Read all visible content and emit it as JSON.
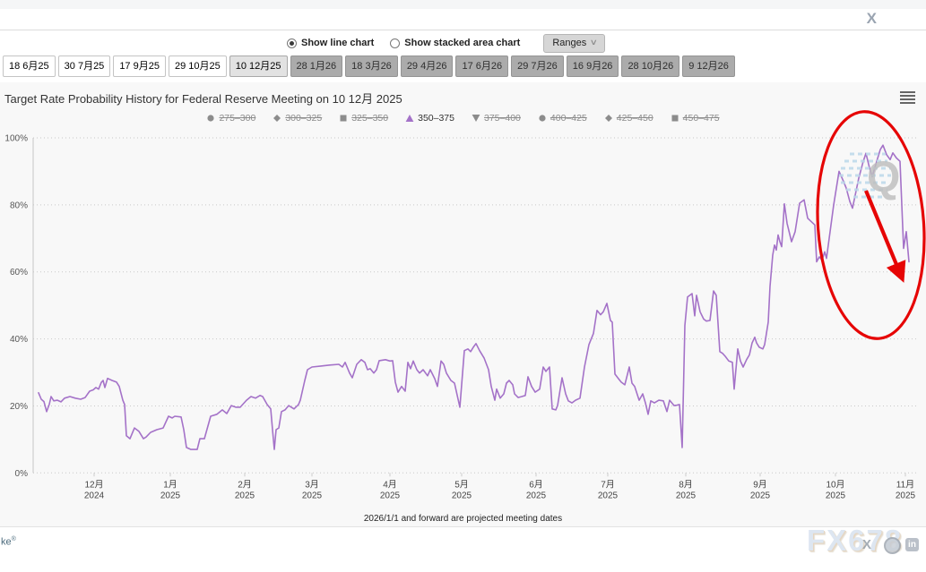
{
  "page": {
    "close_label": "X"
  },
  "controls": {
    "radio_line": {
      "label": "Show line chart",
      "selected": true
    },
    "radio_area": {
      "label": "Show stacked area chart",
      "selected": false
    },
    "ranges_label": "Ranges",
    "ranges_chevron": "∨"
  },
  "tabs": [
    {
      "label": "18 6月25",
      "state": "past"
    },
    {
      "label": "30 7月25",
      "state": "past"
    },
    {
      "label": "17 9月25",
      "state": "past"
    },
    {
      "label": "29 10月25",
      "state": "past"
    },
    {
      "label": "10 12月25",
      "state": "active"
    },
    {
      "label": "28 1月26",
      "state": "future"
    },
    {
      "label": "18 3月26",
      "state": "future"
    },
    {
      "label": "29 4月26",
      "state": "future"
    },
    {
      "label": "17 6月26",
      "state": "future"
    },
    {
      "label": "29 7月26",
      "state": "future"
    },
    {
      "label": "16 9月26",
      "state": "future"
    },
    {
      "label": "28 10月26",
      "state": "future"
    },
    {
      "label": "9 12月26",
      "state": "future"
    }
  ],
  "chart": {
    "title": "Target Rate Probability History for Federal Reserve Meeting on 10 12月 2025",
    "footnote": "2026/1/1 and forward are projected meeting dates"
  },
  "legend": [
    {
      "label": "275–300",
      "marker": "circle",
      "active": false
    },
    {
      "label": "300–325",
      "marker": "diamond",
      "active": false
    },
    {
      "label": "325–350",
      "marker": "square",
      "active": false
    },
    {
      "label": "350–375",
      "marker": "triangle-up",
      "active": true
    },
    {
      "label": "375–400",
      "marker": "triangle-down",
      "active": false
    },
    {
      "label": "400–425",
      "marker": "circle",
      "active": false
    },
    {
      "label": "425–450",
      "marker": "diamond",
      "active": false
    },
    {
      "label": "450–475",
      "marker": "square",
      "active": false
    }
  ],
  "chart_data": {
    "type": "line",
    "title": "Target Rate Probability History for Federal Reserve Meeting on 10 12月 2025",
    "ylabel": "",
    "xlabel": "",
    "ylim": [
      0,
      100
    ],
    "grid": "horizontal-dotted",
    "legend_position": "top-center",
    "y_ticks": [
      0,
      20,
      40,
      60,
      80,
      100
    ],
    "y_tick_format": "percent",
    "x_ticks": [
      {
        "label": "12月",
        "year": "2024"
      },
      {
        "label": "1月",
        "year": "2025"
      },
      {
        "label": "2月",
        "year": "2025"
      },
      {
        "label": "3月",
        "year": "2025"
      },
      {
        "label": "4月",
        "year": "2025"
      },
      {
        "label": "5月",
        "year": "2025"
      },
      {
        "label": "6月",
        "year": "2025"
      },
      {
        "label": "7月",
        "year": "2025"
      },
      {
        "label": "8月",
        "year": "2025"
      },
      {
        "label": "9月",
        "year": "2025"
      },
      {
        "label": "10月",
        "year": "2025"
      },
      {
        "label": "11月",
        "year": "2025"
      }
    ],
    "hidden_series": [
      "275–300",
      "300–325",
      "325–350",
      "375–400",
      "400–425",
      "425–450",
      "450–475"
    ],
    "series": [
      {
        "name": "350–375",
        "color": "#a472c8",
        "unit": "%",
        "points": [
          [
            43,
            23.9
          ],
          [
            46,
            22
          ],
          [
            49,
            21.3
          ],
          [
            52,
            18.3
          ],
          [
            55,
            20.5
          ],
          [
            57,
            22.8
          ],
          [
            60,
            21.5
          ],
          [
            64,
            21.7
          ],
          [
            68,
            21.2
          ],
          [
            72,
            22.3
          ],
          [
            78,
            22.8
          ],
          [
            84,
            22.3
          ],
          [
            90,
            22
          ],
          [
            95,
            22.5
          ],
          [
            100,
            24.4
          ],
          [
            104,
            24.8
          ],
          [
            107,
            25.5
          ],
          [
            110,
            25
          ],
          [
            113,
            27
          ],
          [
            115,
            27.6
          ],
          [
            117,
            25.5
          ],
          [
            120,
            28.2
          ],
          [
            125,
            27.6
          ],
          [
            130,
            27.1
          ],
          [
            133,
            25.8
          ],
          [
            137,
            21.7
          ],
          [
            139,
            20.4
          ],
          [
            141,
            11.1
          ],
          [
            145,
            10.2
          ],
          [
            150,
            13.4
          ],
          [
            155,
            12.4
          ],
          [
            160,
            10.2
          ],
          [
            163,
            10.7
          ],
          [
            168,
            12.1
          ],
          [
            175,
            12.9
          ],
          [
            182,
            13.4
          ],
          [
            188,
            16.9
          ],
          [
            192,
            16.4
          ],
          [
            195,
            16.9
          ],
          [
            202,
            16.7
          ],
          [
            205,
            12.9
          ],
          [
            208,
            7.6
          ],
          [
            213,
            7
          ],
          [
            220,
            7
          ],
          [
            223,
            10.2
          ],
          [
            228,
            10.2
          ],
          [
            235,
            16.9
          ],
          [
            242,
            17.5
          ],
          [
            248,
            18.8
          ],
          [
            253,
            17.7
          ],
          [
            258,
            20.1
          ],
          [
            263,
            19.6
          ],
          [
            268,
            19.6
          ],
          [
            275,
            21.7
          ],
          [
            280,
            22.8
          ],
          [
            285,
            22.3
          ],
          [
            290,
            23.1
          ],
          [
            293,
            22.8
          ],
          [
            298,
            20.4
          ],
          [
            302,
            19.1
          ],
          [
            304,
            12.9
          ],
          [
            306,
            7
          ],
          [
            308,
            12.9
          ],
          [
            311,
            13.4
          ],
          [
            314,
            18.3
          ],
          [
            318,
            18.8
          ],
          [
            322,
            20.1
          ],
          [
            325,
            19.6
          ],
          [
            328,
            19.1
          ],
          [
            333,
            20.4
          ],
          [
            335,
            21.7
          ],
          [
            340,
            27.6
          ],
          [
            343,
            30.8
          ],
          [
            348,
            31.6
          ],
          [
            358,
            31.9
          ],
          [
            368,
            32.2
          ],
          [
            378,
            32.4
          ],
          [
            382,
            31.6
          ],
          [
            385,
            33
          ],
          [
            390,
            29.8
          ],
          [
            393,
            28.4
          ],
          [
            398,
            32.4
          ],
          [
            403,
            33.8
          ],
          [
            407,
            33
          ],
          [
            410,
            30.8
          ],
          [
            413,
            31.1
          ],
          [
            417,
            29.8
          ],
          [
            420,
            30.8
          ],
          [
            423,
            33.5
          ],
          [
            430,
            33.8
          ],
          [
            435,
            33.4
          ],
          [
            438,
            33.5
          ],
          [
            441,
            27.1
          ],
          [
            444,
            24.1
          ],
          [
            448,
            25.8
          ],
          [
            452,
            24.4
          ],
          [
            455,
            33
          ],
          [
            458,
            31.1
          ],
          [
            461,
            33.4
          ],
          [
            465,
            30.8
          ],
          [
            468,
            29.8
          ],
          [
            472,
            30.8
          ],
          [
            477,
            29
          ],
          [
            480,
            30.8
          ],
          [
            485,
            28.1
          ],
          [
            488,
            25.8
          ],
          [
            492,
            33.4
          ],
          [
            495,
            32.4
          ],
          [
            498,
            29.8
          ],
          [
            503,
            27.6
          ],
          [
            507,
            26.8
          ],
          [
            513,
            19.6
          ],
          [
            518,
            36.5
          ],
          [
            522,
            37
          ],
          [
            525,
            36.2
          ],
          [
            528,
            37.5
          ],
          [
            531,
            38.6
          ],
          [
            535,
            36.5
          ],
          [
            540,
            34.3
          ],
          [
            545,
            30.8
          ],
          [
            548,
            25.8
          ],
          [
            552,
            21.7
          ],
          [
            554,
            25
          ],
          [
            558,
            22.3
          ],
          [
            562,
            23.6
          ],
          [
            565,
            26.8
          ],
          [
            568,
            27.6
          ],
          [
            572,
            26.3
          ],
          [
            574,
            23.6
          ],
          [
            578,
            22.5
          ],
          [
            582,
            22.8
          ],
          [
            586,
            23.1
          ],
          [
            589,
            28.7
          ],
          [
            593,
            25.8
          ],
          [
            597,
            24.1
          ],
          [
            602,
            25
          ],
          [
            606,
            31.6
          ],
          [
            609,
            30.3
          ],
          [
            613,
            31.6
          ],
          [
            616,
            19.1
          ],
          [
            620,
            18.8
          ],
          [
            622,
            20.1
          ],
          [
            627,
            28.4
          ],
          [
            631,
            23.6
          ],
          [
            634,
            21.5
          ],
          [
            638,
            20.9
          ],
          [
            642,
            21.7
          ],
          [
            647,
            22.3
          ],
          [
            652,
            31.6
          ],
          [
            657,
            38.3
          ],
          [
            662,
            41.6
          ],
          [
            666,
            48.5
          ],
          [
            670,
            47.2
          ],
          [
            673,
            48.1
          ],
          [
            677,
            50.6
          ],
          [
            681,
            45.5
          ],
          [
            683,
            45
          ],
          [
            686,
            29.5
          ],
          [
            690,
            28.1
          ],
          [
            693,
            27.1
          ],
          [
            697,
            26.3
          ],
          [
            702,
            31.6
          ],
          [
            705,
            26.8
          ],
          [
            708,
            25.8
          ],
          [
            713,
            21.7
          ],
          [
            717,
            23.6
          ],
          [
            720,
            20.9
          ],
          [
            723,
            17.5
          ],
          [
            726,
            21.5
          ],
          [
            730,
            20.9
          ],
          [
            735,
            21.7
          ],
          [
            740,
            21.5
          ],
          [
            744,
            18.3
          ],
          [
            747,
            21.7
          ],
          [
            752,
            20.1
          ],
          [
            755,
            20.2
          ],
          [
            758,
            20.4
          ],
          [
            761,
            7.6
          ],
          [
            764,
            44
          ],
          [
            767,
            52.5
          ],
          [
            772,
            53.5
          ],
          [
            775,
            46.9
          ],
          [
            777,
            53
          ],
          [
            781,
            48.1
          ],
          [
            785,
            45.9
          ],
          [
            788,
            45.3
          ],
          [
            792,
            45.5
          ],
          [
            796,
            54.3
          ],
          [
            799,
            53
          ],
          [
            803,
            36.2
          ],
          [
            806,
            35.7
          ],
          [
            809,
            34.8
          ],
          [
            813,
            33.4
          ],
          [
            817,
            33
          ],
          [
            819,
            25
          ],
          [
            823,
            37
          ],
          [
            826,
            33.4
          ],
          [
            829,
            31.6
          ],
          [
            833,
            33.9
          ],
          [
            836,
            35.2
          ],
          [
            839,
            38.8
          ],
          [
            842,
            40.5
          ],
          [
            844,
            38.8
          ],
          [
            847,
            37.5
          ],
          [
            851,
            37
          ],
          [
            853,
            38.3
          ],
          [
            857,
            45
          ],
          [
            859,
            55.7
          ],
          [
            862,
            65
          ],
          [
            864,
            68
          ],
          [
            866,
            66.5
          ],
          [
            868,
            71
          ],
          [
            870,
            69
          ],
          [
            872,
            67.5
          ],
          [
            875,
            80.3
          ],
          [
            878,
            74.5
          ],
          [
            883,
            69
          ],
          [
            887,
            72
          ],
          [
            892,
            80.5
          ],
          [
            897,
            81.5
          ],
          [
            901,
            76
          ],
          [
            905,
            75
          ],
          [
            909,
            74
          ],
          [
            911,
            63
          ],
          [
            914,
            64.5
          ],
          [
            917,
            63.5
          ],
          [
            920,
            66
          ],
          [
            922,
            64
          ],
          [
            925,
            70
          ],
          [
            930,
            80
          ],
          [
            936,
            90
          ],
          [
            941,
            87
          ],
          [
            944,
            85
          ],
          [
            948,
            81
          ],
          [
            951,
            79
          ],
          [
            958,
            88
          ],
          [
            963,
            93
          ],
          [
            966,
            95.4
          ],
          [
            970,
            91
          ],
          [
            973,
            88.4
          ],
          [
            978,
            93
          ],
          [
            982,
            96.5
          ],
          [
            985,
            97.8
          ],
          [
            989,
            95
          ],
          [
            993,
            93.5
          ],
          [
            996,
            95.5
          ],
          [
            1000,
            94
          ],
          [
            1004,
            93
          ],
          [
            1008,
            67
          ],
          [
            1011,
            72
          ],
          [
            1014,
            63
          ]
        ]
      }
    ]
  },
  "annotation": {
    "color": "#e60505",
    "shape": "ellipse-with-arrow"
  },
  "watermarks": {
    "fx678": "FX678",
    "q_logo": "Q",
    "partial_left": "ke",
    "registered": "®",
    "linkedin": "in",
    "x_glyph": "X"
  },
  "colors": {
    "line": "#a472c8",
    "panel_bg": "#f8f8f8",
    "grid": "#c9c9c9",
    "axis": "#c6c6c6",
    "inactive_legend": "#8c8c8c",
    "annotation_red": "#e60505"
  }
}
